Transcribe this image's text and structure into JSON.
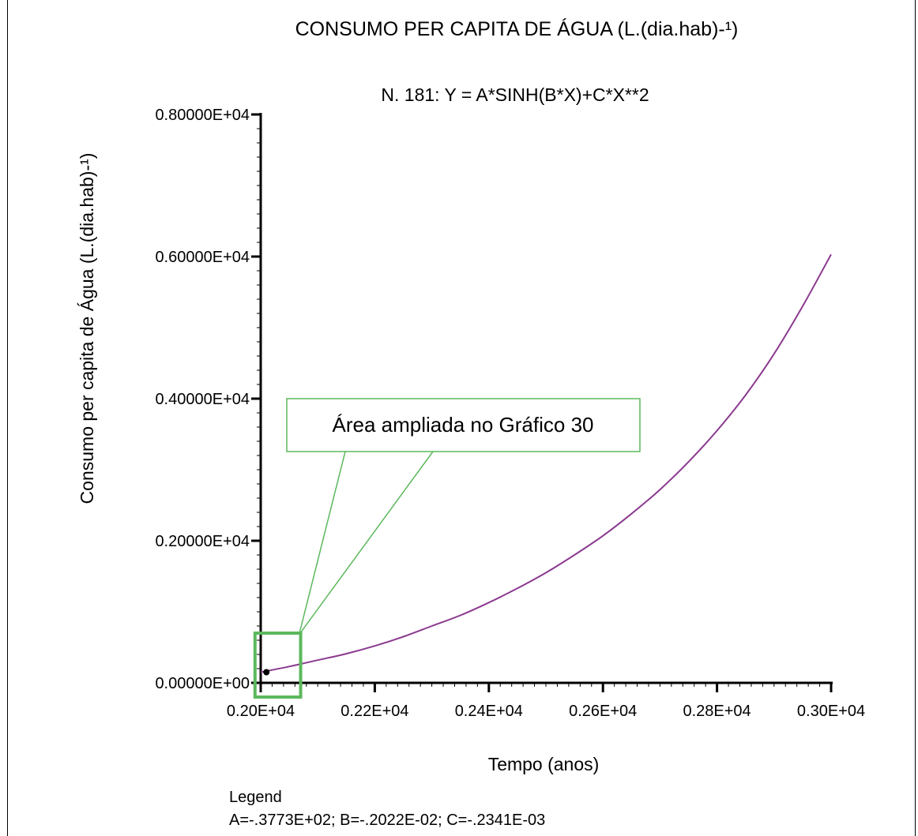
{
  "chart_data": {
    "type": "line",
    "title": "CONSUMO PER CAPITA DE ÁGUA (L.(dia.hab)-¹)",
    "subtitle": "N. 181:   Y = A*SINH(B*X)+C*X**2",
    "xlabel": "Tempo (anos)",
    "ylabel": "Consumo per capita de Água (L.(dia.hab)-¹)",
    "xlim": [
      2000,
      3000
    ],
    "ylim": [
      0,
      8000
    ],
    "x_ticks": [
      2000,
      2200,
      2400,
      2600,
      2800,
      3000
    ],
    "x_tick_labels": [
      "0.20E+04",
      "0.22E+04",
      "0.24E+04",
      "0.26E+04",
      "0.28E+04",
      "0.30E+04"
    ],
    "y_ticks": [
      0,
      2000,
      4000,
      6000,
      8000
    ],
    "y_tick_labels": [
      "0.00000E+00",
      "0.20000E+04",
      "0.40000E+04",
      "0.60000E+04",
      "0.80000E+04"
    ],
    "grid": false,
    "series": [
      {
        "color": "#8b3a8f",
        "x": [
          2000,
          2050,
          2100,
          2150,
          2200,
          2250,
          2300,
          2350,
          2400,
          2450,
          2500,
          2550,
          2600,
          2650,
          2700,
          2750,
          2800,
          2850,
          2900,
          2950,
          3000
        ],
        "values": [
          150,
          230,
          320,
          410,
          520,
          650,
          800,
          950,
          1130,
          1330,
          1550,
          1800,
          2070,
          2380,
          2720,
          3110,
          3550,
          4050,
          4630,
          5300,
          6030
        ]
      }
    ],
    "data_point": {
      "x": 2010,
      "y": 150,
      "color": "#000000"
    },
    "legend": {
      "title": "Legend",
      "text": "A=-.3773E+02;  B=-.2022E-02;  C=-.2341E-03",
      "placement": "bottom-left"
    },
    "annotation": {
      "text": "Área ampliada no Gráfico 30",
      "color": "#5cb85c",
      "region": {
        "x": [
          1990,
          2070
        ],
        "y": [
          -200,
          700
        ]
      }
    }
  }
}
